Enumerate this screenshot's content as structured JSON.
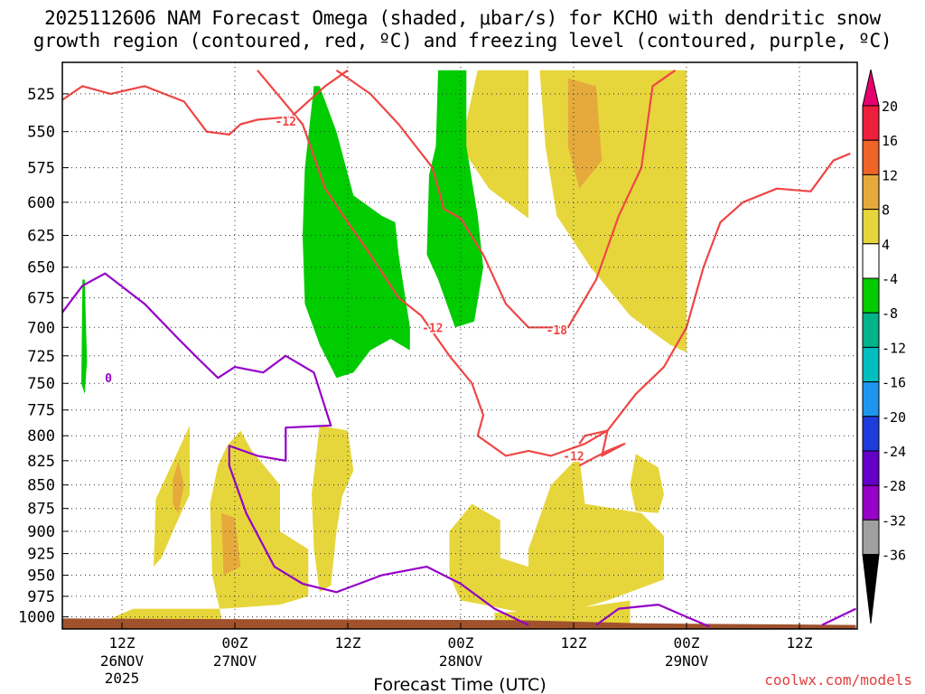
{
  "title_line1": "2025112606 NAM Forecast Omega (shaded, μbar/s) for KCHO with dendritic snow",
  "title_line2": "growth region (contoured, red, ºC) and freezing level (contoured, purple, ºC)",
  "credit": "coolwx.com/models",
  "colors": {
    "omega_negative": "#00cc00",
    "omega_positive_low": "#e6d63c",
    "omega_positive_mid": "#e6aa3c",
    "dgz_contour": "#f04646",
    "freezing_contour": "#9600c8",
    "ground": "#a0522d"
  },
  "chart_data": {
    "type": "heatmap",
    "xlabel": "Forecast Time (UTC)",
    "ylabel": "",
    "y_scale": "pressure (log, inverted)",
    "ylim": [
      1015,
      505
    ],
    "y_ticks": [
      525,
      550,
      575,
      600,
      625,
      650,
      675,
      700,
      725,
      750,
      775,
      800,
      825,
      850,
      875,
      900,
      925,
      950,
      975,
      1000
    ],
    "grid": true,
    "x_ticks": [
      {
        "label": "12Z",
        "date": "26NOV",
        "year": "2025"
      },
      {
        "label": "00Z",
        "date": "27NOV",
        "year": ""
      },
      {
        "label": "12Z",
        "date": "",
        "year": ""
      },
      {
        "label": "00Z",
        "date": "28NOV",
        "year": ""
      },
      {
        "label": "12Z",
        "date": "",
        "year": ""
      },
      {
        "label": "00Z",
        "date": "29NOV",
        "year": ""
      },
      {
        "label": "12Z",
        "date": "",
        "year": ""
      }
    ],
    "colorbar": {
      "labels": [
        "20",
        "16",
        "12",
        "8",
        "4",
        "-4",
        "-8",
        "-12",
        "-16",
        "-20",
        "-24",
        "-28",
        "-32",
        "-36"
      ],
      "colors": [
        "#ee1f3c",
        "#f06428",
        "#e6aa3c",
        "#e6d63c",
        "#ffffff",
        "#00cc00",
        "#00b48c",
        "#00bebe",
        "#1e96f0",
        "#1e3cdc",
        "#6400c8",
        "#9600c8",
        "#a0a0a0"
      ],
      "top_arrow_color": "#e6006e",
      "bottom_arrow_color": "#000000"
    },
    "contour_labels": [
      {
        "text": "-12",
        "color": "red"
      },
      {
        "text": "-12",
        "color": "red"
      },
      {
        "text": "-18",
        "color": "red"
      },
      {
        "text": "-12",
        "color": "red"
      },
      {
        "text": "0",
        "color": "purple"
      }
    ]
  }
}
